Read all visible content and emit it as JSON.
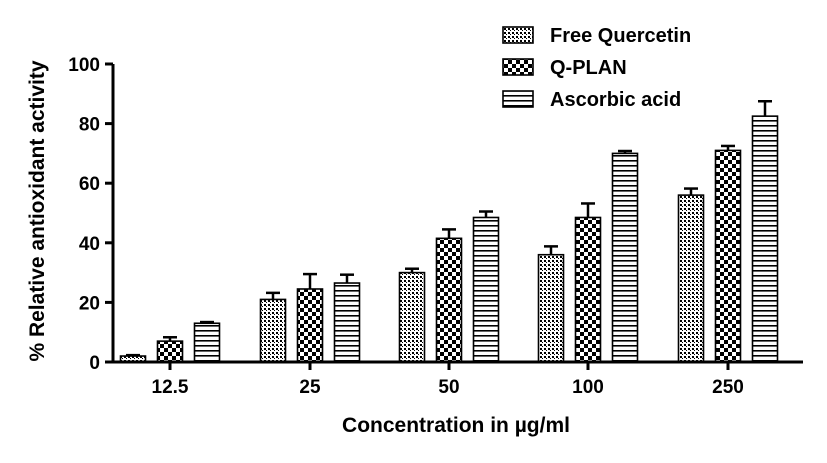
{
  "chart_data": {
    "type": "bar",
    "title": "",
    "xlabel": "Concentration in µg/ml",
    "ylabel": "% Relative antioxidant activity",
    "ylim": [
      0,
      100
    ],
    "yticks": [
      0,
      20,
      40,
      60,
      80,
      100
    ],
    "categories": [
      "12.5",
      "25",
      "50",
      "100",
      "250"
    ],
    "legend_position": "top-right",
    "series": [
      {
        "name": "Free Quercetin",
        "pattern": "fine-dots",
        "values": [
          2,
          21,
          30,
          36,
          56
        ],
        "errors": [
          0.3,
          2.2,
          1.3,
          2.8,
          2.2
        ]
      },
      {
        "name": "Q-PLAN",
        "pattern": "checker",
        "values": [
          7,
          24.5,
          41.5,
          48.5,
          71
        ],
        "errors": [
          1.3,
          5,
          3,
          4.7,
          1.5
        ]
      },
      {
        "name": "Ascorbic acid",
        "pattern": "horizontal-stripes",
        "values": [
          13,
          26.5,
          48.5,
          70,
          82.5
        ],
        "errors": [
          0.4,
          2.8,
          2,
          0.8,
          5
        ]
      }
    ]
  }
}
